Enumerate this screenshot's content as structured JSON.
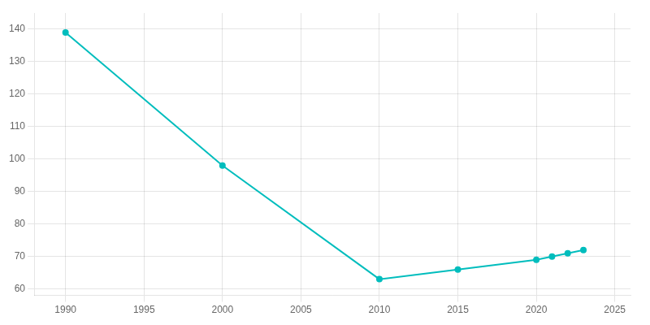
{
  "chart_data": {
    "type": "line",
    "x": [
      1990,
      2000,
      2010,
      2015,
      2020,
      2021,
      2022,
      2023
    ],
    "values": [
      139,
      98,
      63,
      66,
      69,
      70,
      71,
      72
    ],
    "color": "#00BDBD",
    "marker": "circle",
    "xlim": [
      1988,
      2026
    ],
    "xticks": [
      1990,
      1995,
      2000,
      2005,
      2010,
      2015,
      2020,
      2025
    ],
    "ylim": [
      58,
      145
    ],
    "yticks": [
      60,
      70,
      80,
      90,
      100,
      110,
      120,
      130,
      140
    ],
    "grid": true
  }
}
